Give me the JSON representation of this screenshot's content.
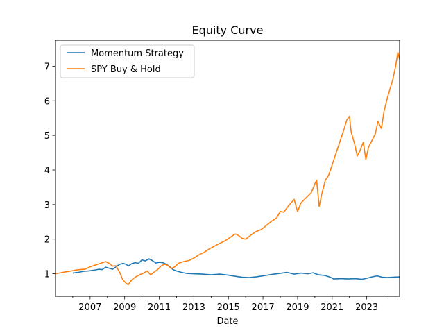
{
  "chart_data": {
    "type": "line",
    "title": "Equity Curve",
    "xlabel": "Date",
    "ylabel": "",
    "xlim": [
      2005.0,
      2024.9
    ],
    "ylim": [
      0.35,
      7.75
    ],
    "x_ticks": [
      2007,
      2009,
      2011,
      2013,
      2015,
      2017,
      2019,
      2021,
      2023
    ],
    "x_minor_ticks": [
      2006,
      2008,
      2010,
      2012,
      2014,
      2016,
      2018,
      2020,
      2022,
      2024
    ],
    "y_ticks": [
      1,
      2,
      3,
      4,
      5,
      6,
      7
    ],
    "grid": false,
    "legend_position": "top-left",
    "series": [
      {
        "name": "Momentum Strategy",
        "color": "#1f77b4",
        "points": [
          [
            2006.0,
            1.02
          ],
          [
            2006.3,
            1.04
          ],
          [
            2006.6,
            1.07
          ],
          [
            2006.9,
            1.08
          ],
          [
            2007.2,
            1.1
          ],
          [
            2007.5,
            1.13
          ],
          [
            2007.7,
            1.12
          ],
          [
            2007.9,
            1.19
          ],
          [
            2008.1,
            1.16
          ],
          [
            2008.3,
            1.13
          ],
          [
            2008.5,
            1.2
          ],
          [
            2008.7,
            1.27
          ],
          [
            2008.9,
            1.3
          ],
          [
            2009.1,
            1.27
          ],
          [
            2009.2,
            1.22
          ],
          [
            2009.4,
            1.29
          ],
          [
            2009.6,
            1.32
          ],
          [
            2009.8,
            1.3
          ],
          [
            2010.0,
            1.4
          ],
          [
            2010.2,
            1.37
          ],
          [
            2010.4,
            1.43
          ],
          [
            2010.6,
            1.38
          ],
          [
            2010.8,
            1.31
          ],
          [
            2011.0,
            1.33
          ],
          [
            2011.2,
            1.32
          ],
          [
            2011.4,
            1.28
          ],
          [
            2011.6,
            1.21
          ],
          [
            2011.8,
            1.12
          ],
          [
            2012.0,
            1.08
          ],
          [
            2012.3,
            1.04
          ],
          [
            2012.6,
            1.01
          ],
          [
            2013.0,
            1.0
          ],
          [
            2013.5,
            0.99
          ],
          [
            2014.0,
            0.97
          ],
          [
            2014.5,
            0.99
          ],
          [
            2015.0,
            0.96
          ],
          [
            2015.5,
            0.92
          ],
          [
            2015.8,
            0.9
          ],
          [
            2016.2,
            0.89
          ],
          [
            2016.6,
            0.91
          ],
          [
            2017.0,
            0.94
          ],
          [
            2017.5,
            0.98
          ],
          [
            2017.8,
            1.0
          ],
          [
            2018.1,
            1.02
          ],
          [
            2018.4,
            1.04
          ],
          [
            2018.8,
            0.99
          ],
          [
            2019.2,
            1.02
          ],
          [
            2019.6,
            1.0
          ],
          [
            2019.9,
            1.03
          ],
          [
            2020.2,
            0.97
          ],
          [
            2020.6,
            0.95
          ],
          [
            2020.9,
            0.9
          ],
          [
            2021.1,
            0.85
          ],
          [
            2021.5,
            0.86
          ],
          [
            2021.9,
            0.85
          ],
          [
            2022.3,
            0.86
          ],
          [
            2022.7,
            0.84
          ],
          [
            2023.0,
            0.87
          ],
          [
            2023.3,
            0.91
          ],
          [
            2023.6,
            0.94
          ],
          [
            2023.9,
            0.9
          ],
          [
            2024.2,
            0.89
          ],
          [
            2024.5,
            0.9
          ],
          [
            2024.9,
            0.91
          ]
        ]
      },
      {
        "name": "SPY Buy & Hold",
        "color": "#ff7f0e",
        "points": [
          [
            2005.0,
            1.0
          ],
          [
            2005.2,
            1.02
          ],
          [
            2005.5,
            1.05
          ],
          [
            2005.8,
            1.07
          ],
          [
            2006.1,
            1.1
          ],
          [
            2006.4,
            1.12
          ],
          [
            2006.7,
            1.13
          ],
          [
            2007.0,
            1.2
          ],
          [
            2007.3,
            1.25
          ],
          [
            2007.6,
            1.3
          ],
          [
            2007.9,
            1.35
          ],
          [
            2008.1,
            1.3
          ],
          [
            2008.3,
            1.22
          ],
          [
            2008.5,
            1.23
          ],
          [
            2008.7,
            1.05
          ],
          [
            2008.9,
            0.82
          ],
          [
            2009.1,
            0.72
          ],
          [
            2009.2,
            0.68
          ],
          [
            2009.4,
            0.82
          ],
          [
            2009.6,
            0.9
          ],
          [
            2009.9,
            0.98
          ],
          [
            2010.1,
            1.02
          ],
          [
            2010.3,
            1.08
          ],
          [
            2010.5,
            0.97
          ],
          [
            2010.7,
            1.05
          ],
          [
            2010.9,
            1.12
          ],
          [
            2011.1,
            1.22
          ],
          [
            2011.3,
            1.28
          ],
          [
            2011.5,
            1.24
          ],
          [
            2011.7,
            1.15
          ],
          [
            2011.9,
            1.2
          ],
          [
            2012.1,
            1.3
          ],
          [
            2012.4,
            1.35
          ],
          [
            2012.7,
            1.38
          ],
          [
            2013.0,
            1.45
          ],
          [
            2013.3,
            1.55
          ],
          [
            2013.6,
            1.62
          ],
          [
            2013.9,
            1.72
          ],
          [
            2014.2,
            1.8
          ],
          [
            2014.5,
            1.88
          ],
          [
            2014.8,
            1.95
          ],
          [
            2015.1,
            2.05
          ],
          [
            2015.4,
            2.15
          ],
          [
            2015.6,
            2.1
          ],
          [
            2015.8,
            2.02
          ],
          [
            2016.0,
            2.0
          ],
          [
            2016.3,
            2.12
          ],
          [
            2016.6,
            2.22
          ],
          [
            2016.9,
            2.28
          ],
          [
            2017.2,
            2.4
          ],
          [
            2017.5,
            2.52
          ],
          [
            2017.8,
            2.62
          ],
          [
            2018.0,
            2.8
          ],
          [
            2018.2,
            2.78
          ],
          [
            2018.5,
            2.98
          ],
          [
            2018.8,
            3.15
          ],
          [
            2019.0,
            2.8
          ],
          [
            2019.2,
            3.05
          ],
          [
            2019.5,
            3.2
          ],
          [
            2019.8,
            3.35
          ],
          [
            2020.0,
            3.6
          ],
          [
            2020.1,
            3.7
          ],
          [
            2020.25,
            2.95
          ],
          [
            2020.4,
            3.3
          ],
          [
            2020.6,
            3.7
          ],
          [
            2020.8,
            3.85
          ],
          [
            2020.9,
            4.0
          ],
          [
            2021.1,
            4.3
          ],
          [
            2021.3,
            4.6
          ],
          [
            2021.5,
            4.9
          ],
          [
            2021.7,
            5.2
          ],
          [
            2021.85,
            5.45
          ],
          [
            2022.0,
            5.55
          ],
          [
            2022.1,
            5.1
          ],
          [
            2022.3,
            4.75
          ],
          [
            2022.45,
            4.4
          ],
          [
            2022.6,
            4.55
          ],
          [
            2022.8,
            4.8
          ],
          [
            2022.95,
            4.3
          ],
          [
            2023.1,
            4.65
          ],
          [
            2023.3,
            4.85
          ],
          [
            2023.5,
            5.05
          ],
          [
            2023.65,
            5.4
          ],
          [
            2023.85,
            5.2
          ],
          [
            2024.0,
            5.7
          ],
          [
            2024.2,
            6.1
          ],
          [
            2024.35,
            6.35
          ],
          [
            2024.5,
            6.6
          ],
          [
            2024.65,
            6.95
          ],
          [
            2024.8,
            7.4
          ],
          [
            2024.9,
            7.2
          ]
        ]
      }
    ]
  }
}
